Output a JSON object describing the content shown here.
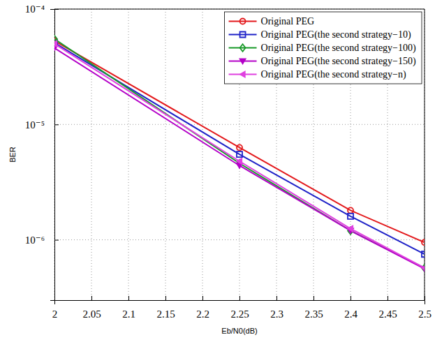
{
  "chart_data": {
    "type": "line",
    "x_label": "Eb/N0(dB)",
    "y_label": "BER",
    "x": [
      2,
      2.25,
      2.4,
      2.5
    ],
    "xlim": [
      2,
      2.5
    ],
    "xticks": [
      2,
      2.05,
      2.1,
      2.15,
      2.2,
      2.25,
      2.3,
      2.35,
      2.4,
      2.45,
      2.5
    ],
    "ylim": [
      3e-07,
      0.0001
    ],
    "yticks": [
      {
        "value": 1e-06,
        "label": "10⁻⁶"
      },
      {
        "value": 1e-05,
        "label": "10⁻⁵"
      },
      {
        "value": 0.0001,
        "label": "10⁻⁴"
      }
    ],
    "log": "y",
    "grid": true,
    "legend": "top-right",
    "series": [
      {
        "name": "Original PEG",
        "color": "#e3191c",
        "marker": "circle",
        "values": [
          5.3e-05,
          6.3e-06,
          1.8e-06,
          9.5e-07
        ]
      },
      {
        "name": "Original PEG(the second strategy−10)",
        "color": "#1f22c8",
        "marker": "square",
        "values": [
          5.1e-05,
          5.5e-06,
          1.6e-06,
          7.5e-07
        ]
      },
      {
        "name": "Original PEG(the second strategy−100)",
        "color": "#1a9a2a",
        "marker": "diamond",
        "values": [
          5.5e-05,
          4.6e-06,
          1.2e-06,
          5.7e-07
        ]
      },
      {
        "name": "Original PEG(the second strategy−150)",
        "color": "#b400c8",
        "marker": "triangle-down",
        "values": [
          4.6e-05,
          4.4e-06,
          1.2e-06,
          5.6e-07
        ]
      },
      {
        "name": "Original PEG(the second strategy−n)",
        "color": "#e040e0",
        "marker": "triangle-left",
        "values": [
          5e-05,
          4.8e-06,
          1.25e-06,
          5.7e-07
        ]
      }
    ]
  }
}
